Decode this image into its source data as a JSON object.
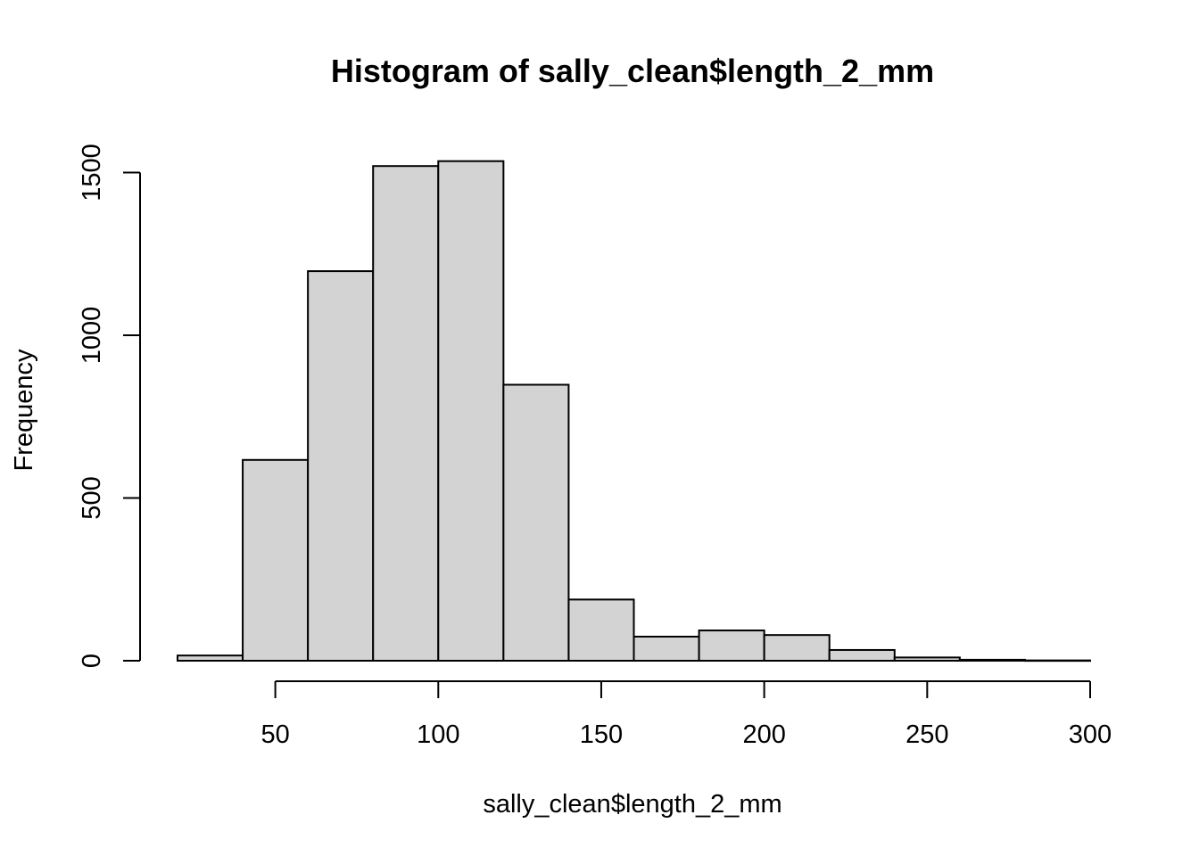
{
  "chart_data": {
    "type": "bar",
    "subtype": "histogram",
    "title": "Histogram of sally_clean$length_2_mm",
    "xlabel": "sally_clean$length_2_mm",
    "ylabel": "Frequency",
    "bin_edges": [
      20,
      40,
      60,
      80,
      100,
      120,
      140,
      160,
      180,
      200,
      220,
      240,
      260,
      280,
      300
    ],
    "values": [
      16,
      617,
      1197,
      1520,
      1535,
      848,
      188,
      74,
      93,
      79,
      33,
      10,
      3,
      1
    ],
    "xlim": [
      20,
      300
    ],
    "ylim": [
      0,
      1535
    ],
    "x_ticks": [
      50,
      100,
      150,
      200,
      250,
      300
    ],
    "y_ticks": [
      0,
      500,
      1000,
      1500
    ],
    "bar_fill": "#d3d3d3",
    "bar_stroke": "#000000",
    "grid": false,
    "legend": "none"
  }
}
